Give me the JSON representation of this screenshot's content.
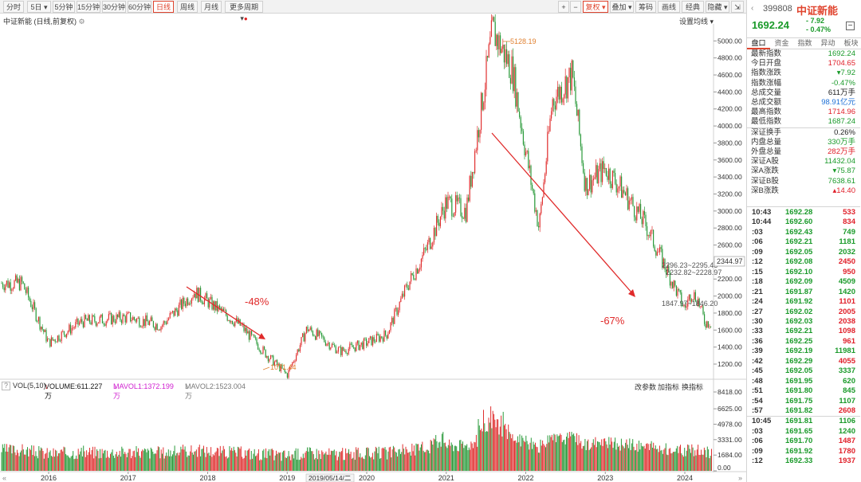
{
  "toolbar": {
    "periods": [
      {
        "label": "分时",
        "active": false
      },
      {
        "label": "5日 ▾",
        "active": false
      },
      {
        "label": "5分钟",
        "active": false
      },
      {
        "label": "15分钟",
        "active": false
      },
      {
        "label": "30分钟",
        "active": false
      },
      {
        "label": "60分钟",
        "active": false
      },
      {
        "label": "日线",
        "active": true
      },
      {
        "label": "周线",
        "active": false
      },
      {
        "label": "月线",
        "active": false
      },
      {
        "label": "更多周期 ▾",
        "active": false
      }
    ],
    "plus": "+",
    "minus": "−",
    "fuquan": "复权 ▾",
    "overlay": "叠加 ▾",
    "chips": "筹码",
    "draw": "画线",
    "classic": "经典",
    "hide": "隐藏 ▾",
    "expand": "⇲"
  },
  "chart": {
    "title": "中证新能 (日线,前复权)",
    "ma_setting": "设置均线 ▾",
    "price_axis": [
      "5000.00",
      "4800.00",
      "4600.00",
      "4400.00",
      "4200.00",
      "4000.00",
      "3800.00",
      "3600.00",
      "3400.00",
      "3200.00",
      "3000.00",
      "2800.00",
      "2600.00",
      "2400.00",
      "2200.00",
      "2000.00",
      "1800.00",
      "1600.00",
      "1400.00",
      "1200.00"
    ],
    "current_price_tag": "2344.97",
    "labels": {
      "high": "5128.19",
      "low": "1071.44",
      "box1": "2296.23~2295.45",
      "box2": "2232.82~2228.97",
      "box3": "1847.97~1846.20",
      "drop1": "-48%",
      "drop2": "-67%"
    },
    "year_axis": [
      "2016",
      "2017",
      "2018",
      "2019",
      "2020",
      "2021",
      "2022",
      "2023",
      "2024"
    ],
    "cursor_date": "2019/05/14/二"
  },
  "volume": {
    "header_q": "?",
    "vol": "VOL(5,10)",
    "volume": "VOLUME:611.227万",
    "mavol1": "MAVOL1:1372.199万",
    "mavol2": "MAVOL2:1523.004万",
    "change_params": "改参数",
    "add_indicator": "加指标",
    "switch_indicator": "换指标",
    "axis": [
      "8418.00",
      "6625.00",
      "4978.00",
      "3331.00",
      "1684.00",
      "0.00"
    ]
  },
  "quote": {
    "code": "399808",
    "name": "中证新能",
    "last": "1692.24",
    "change": "- 7.92",
    "change_pct": "- 0.47%",
    "tabs": [
      {
        "label": "盘口",
        "active": true
      },
      {
        "label": "资金",
        "active": false
      },
      {
        "label": "指数",
        "active": false
      },
      {
        "label": "异动",
        "active": false
      },
      {
        "label": "板块",
        "active": false
      }
    ],
    "rows": [
      {
        "k": "最新指数",
        "v": "1692.24",
        "c": "green"
      },
      {
        "k": "今日开盘",
        "v": "1704.65",
        "c": "red"
      },
      {
        "k": "指数涨跌",
        "v": "▾7.92",
        "c": "green"
      },
      {
        "k": "指数涨幅",
        "v": "-0.47%",
        "c": "green"
      },
      {
        "k": "总成交量",
        "v": "611万手",
        "c": "black"
      },
      {
        "k": "总成交额",
        "v": "98.91亿元",
        "c": "blue"
      },
      {
        "k": "最高指数",
        "v": "1714.96",
        "c": "red"
      },
      {
        "k": "最低指数",
        "v": "1687.24",
        "c": "green"
      },
      {
        "k": "深证换手",
        "v": "0.26%",
        "c": "black"
      },
      {
        "k": "内盘总量",
        "v": "330万手",
        "c": "green"
      },
      {
        "k": "外盘总量",
        "v": "282万手",
        "c": "red"
      },
      {
        "k": "深证A股",
        "v": "11432.04",
        "c": "green"
      },
      {
        "k": "深A涨跌",
        "v": "▾75.87",
        "c": "green"
      },
      {
        "k": "深证B股",
        "v": "7638.61",
        "c": "green"
      },
      {
        "k": "深B涨跌",
        "v": "▴14.40",
        "c": "red"
      }
    ],
    "ticks": [
      {
        "t": "10:43",
        "p": "1692.28",
        "q": "533",
        "qc": "red"
      },
      {
        "t": "10:44",
        "p": "1692.60",
        "q": "834",
        "qc": "red"
      },
      {
        "t": ":03",
        "p": "1692.43",
        "q": "749",
        "qc": "green"
      },
      {
        "t": ":06",
        "p": "1692.21",
        "q": "1181",
        "qc": "green"
      },
      {
        "t": ":09",
        "p": "1692.05",
        "q": "2032",
        "qc": "green"
      },
      {
        "t": ":12",
        "p": "1692.08",
        "q": "2450",
        "qc": "red"
      },
      {
        "t": ":15",
        "p": "1692.10",
        "q": "950",
        "qc": "red"
      },
      {
        "t": ":18",
        "p": "1692.09",
        "q": "4509",
        "qc": "green"
      },
      {
        "t": ":21",
        "p": "1691.87",
        "q": "1420",
        "qc": "green"
      },
      {
        "t": ":24",
        "p": "1691.92",
        "q": "1101",
        "qc": "red"
      },
      {
        "t": ":27",
        "p": "1692.02",
        "q": "2005",
        "qc": "red"
      },
      {
        "t": ":30",
        "p": "1692.03",
        "q": "2038",
        "qc": "red"
      },
      {
        "t": ":33",
        "p": "1692.21",
        "q": "1098",
        "qc": "red"
      },
      {
        "t": ":36",
        "p": "1692.25",
        "q": "961",
        "qc": "red"
      },
      {
        "t": ":39",
        "p": "1692.19",
        "q": "11981",
        "qc": "green"
      },
      {
        "t": ":42",
        "p": "1692.29",
        "q": "4055",
        "qc": "red"
      },
      {
        "t": ":45",
        "p": "1692.05",
        "q": "3337",
        "qc": "green"
      },
      {
        "t": ":48",
        "p": "1691.95",
        "q": "620",
        "qc": "green"
      },
      {
        "t": ":51",
        "p": "1691.80",
        "q": "845",
        "qc": "green"
      },
      {
        "t": ":54",
        "p": "1691.75",
        "q": "1107",
        "qc": "green"
      },
      {
        "t": ":57",
        "p": "1691.82",
        "q": "2608",
        "qc": "red"
      },
      {
        "t": "10:45",
        "p": "1691.81",
        "q": "1106",
        "qc": "green"
      },
      {
        "t": ":03",
        "p": "1691.65",
        "q": "1240",
        "qc": "green"
      },
      {
        "t": ":06",
        "p": "1691.70",
        "q": "1487",
        "qc": "red"
      },
      {
        "t": ":09",
        "p": "1691.92",
        "q": "1780",
        "qc": "red"
      },
      {
        "t": ":12",
        "p": "1692.33",
        "q": "1937",
        "qc": "red"
      }
    ]
  },
  "chart_data": {
    "type": "line",
    "x": [
      "2015-09",
      "2016-01",
      "2016-06",
      "2017-01",
      "2017-06",
      "2017-11",
      "2018-06",
      "2018-10",
      "2019-01",
      "2019-04",
      "2019-09",
      "2020-01",
      "2020-04",
      "2020-07",
      "2020-10",
      "2021-01",
      "2021-04",
      "2021-08",
      "2021-11",
      "2022-01",
      "2022-03",
      "2022-05",
      "2022-08",
      "2022-10",
      "2023-01",
      "2023-04",
      "2023-07",
      "2023-10",
      "2024-01",
      "2024-02",
      "2024-03",
      "2024-04"
    ],
    "series": [
      {
        "values": [
          2150,
          1450,
          1700,
          1750,
          1650,
          2050,
          1650,
          1300,
          1071.44,
          1620,
          1350,
          1450,
          1550,
          2100,
          2550,
          3100,
          3000,
          5128.19,
          4650,
          3700,
          2800,
          4300,
          4600,
          3300,
          3500,
          3200,
          2850,
          2350,
          1850,
          2050,
          1950,
          1692.24
        ]
      }
    ],
    "ylim": [
      1050,
      5200
    ],
    "annotations": [
      {
        "text": "-48%",
        "from": "2017-10",
        "to": "2019-01"
      },
      {
        "text": "-67%",
        "from": "2021-11",
        "to": "2023-12"
      }
    ],
    "volume_ylim": [
      0,
      8418
    ]
  }
}
